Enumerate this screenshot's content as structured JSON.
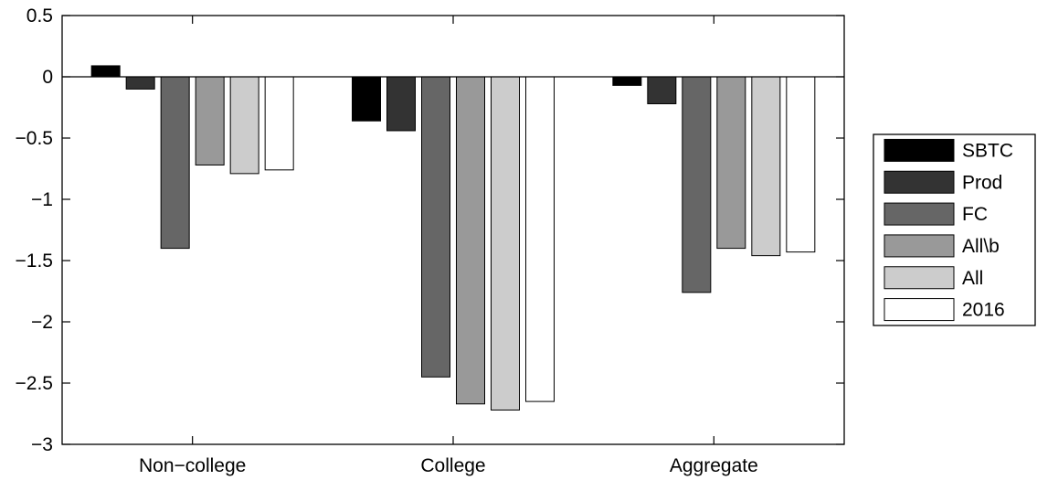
{
  "chart_data": {
    "type": "bar",
    "categories": [
      "Non−college",
      "College",
      "Aggregate"
    ],
    "series": [
      {
        "name": "SBTC",
        "color": "#000000",
        "values": [
          0.09,
          -0.36,
          -0.07
        ]
      },
      {
        "name": "Prod",
        "color": "#333333",
        "values": [
          -0.1,
          -0.44,
          -0.22
        ]
      },
      {
        "name": "FC",
        "color": "#666666",
        "values": [
          -1.4,
          -2.45,
          -1.76
        ]
      },
      {
        "name": "All\\b",
        "color": "#999999",
        "values": [
          -0.72,
          -2.67,
          -1.4
        ]
      },
      {
        "name": "All",
        "color": "#cccccc",
        "values": [
          -0.79,
          -2.72,
          -1.46
        ]
      },
      {
        "name": "2016",
        "color": "#ffffff",
        "values": [
          -0.76,
          -2.65,
          -1.43
        ]
      }
    ],
    "ylim": [
      -3,
      0.5
    ],
    "yticks": [
      0.5,
      0,
      -0.5,
      -1,
      -1.5,
      -2,
      -2.5,
      -3
    ],
    "ytick_labels": [
      "0.5",
      "0",
      "−0.5",
      "−1",
      "−1.5",
      "−2",
      "−2.5",
      "−3"
    ],
    "grid": false,
    "legend_position": "right"
  }
}
